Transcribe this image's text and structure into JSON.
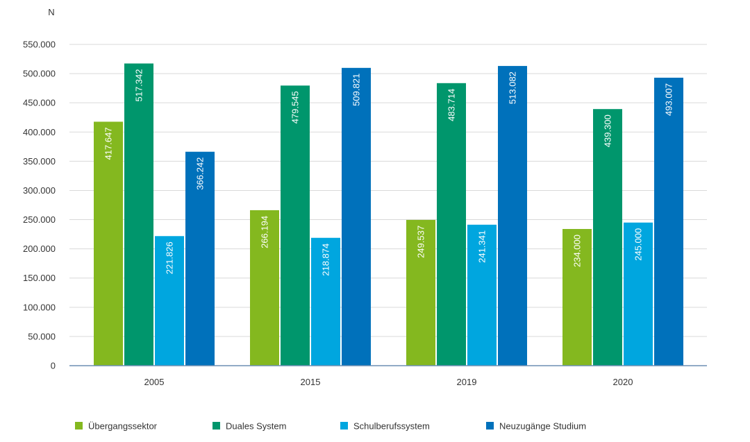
{
  "chart_data": {
    "type": "bar",
    "title": "",
    "xlabel": "",
    "ylabel": "N",
    "ylim": [
      0,
      550000
    ],
    "yticks": [
      0,
      50000,
      100000,
      150000,
      200000,
      250000,
      300000,
      350000,
      400000,
      450000,
      500000,
      550000
    ],
    "ytick_labels": [
      "0",
      "50.000",
      "100.000",
      "150.000",
      "200.000",
      "250.000",
      "300.000",
      "350.000",
      "400.000",
      "450.000",
      "500.000",
      "550.000"
    ],
    "grid": true,
    "legend_position": "bottom",
    "categories": [
      "2005",
      "2015",
      "2019",
      "2020"
    ],
    "series": [
      {
        "name": "Übergangssektor",
        "color": "#84b81f",
        "values": [
          417647,
          266194,
          249537,
          234000
        ],
        "labels": [
          "417.647",
          "266.194",
          "249.537",
          "234.000"
        ]
      },
      {
        "name": "Duales System",
        "color": "#00966c",
        "values": [
          517342,
          479545,
          483714,
          439300
        ],
        "labels": [
          "517.342",
          "479.545",
          "483.714",
          "439.300"
        ]
      },
      {
        "name": "Schulberufssystem",
        "color": "#00a6df",
        "values": [
          221826,
          218874,
          241341,
          245000
        ],
        "labels": [
          "221.826",
          "218.874",
          "241.341",
          "245.000"
        ]
      },
      {
        "name": "Neuzugänge Studium",
        "color": "#0071bb",
        "values": [
          366242,
          509821,
          513082,
          493007
        ],
        "labels": [
          "366.242",
          "509.821",
          "513.082",
          "493.007"
        ]
      }
    ]
  },
  "colors": {
    "gridline": "#d9d9d9",
    "baseline": "#6d8fb3",
    "text": "#333333"
  }
}
